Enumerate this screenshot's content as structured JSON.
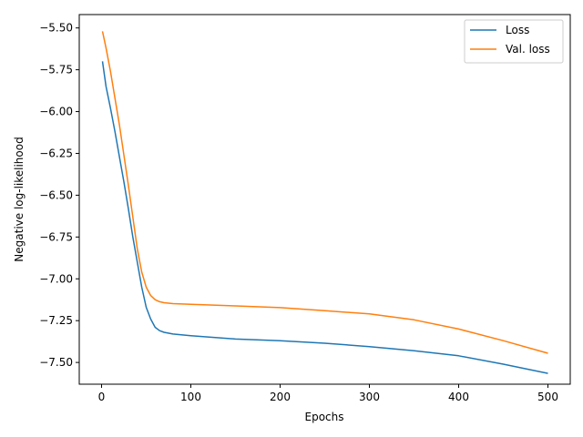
{
  "chart_data": {
    "type": "line",
    "xlabel": "Epochs",
    "ylabel": "Negative log-likelihood",
    "xlim": [
      -25,
      525
    ],
    "ylim": [
      -7.63,
      -5.42
    ],
    "xticks": [
      0,
      100,
      200,
      300,
      400,
      500
    ],
    "xtick_labels": [
      "0",
      "100",
      "200",
      "300",
      "400",
      "500"
    ],
    "yticks": [
      -5.5,
      -5.75,
      -6.0,
      -6.25,
      -6.5,
      -6.75,
      -7.0,
      -7.25,
      -7.5
    ],
    "ytick_labels": [
      "−5.50",
      "−5.75",
      "−6.00",
      "−6.25",
      "−6.50",
      "−6.75",
      "−7.00",
      "−7.25",
      "−7.50"
    ],
    "grid": false,
    "legend_position": "top-right",
    "series": [
      {
        "name": "Loss",
        "color": "#1f77b4",
        "x": [
          1,
          5,
          10,
          15,
          20,
          25,
          30,
          35,
          40,
          45,
          50,
          55,
          60,
          65,
          70,
          80,
          100,
          150,
          200,
          250,
          300,
          350,
          400,
          450,
          500
        ],
        "y": [
          -5.7,
          -5.85,
          -5.98,
          -6.12,
          -6.27,
          -6.42,
          -6.58,
          -6.75,
          -6.9,
          -7.05,
          -7.17,
          -7.24,
          -7.29,
          -7.31,
          -7.32,
          -7.33,
          -7.34,
          -7.36,
          -7.37,
          -7.385,
          -7.405,
          -7.43,
          -7.46,
          -7.51,
          -7.565
        ]
      },
      {
        "name": "Val. loss",
        "color": "#ff7f0e",
        "x": [
          1,
          5,
          10,
          15,
          20,
          25,
          30,
          35,
          40,
          45,
          50,
          55,
          60,
          65,
          70,
          80,
          100,
          150,
          200,
          250,
          300,
          350,
          400,
          450,
          500
        ],
        "y": [
          -5.52,
          -5.62,
          -5.76,
          -5.92,
          -6.08,
          -6.26,
          -6.44,
          -6.63,
          -6.82,
          -6.96,
          -7.05,
          -7.1,
          -7.125,
          -7.137,
          -7.143,
          -7.148,
          -7.152,
          -7.162,
          -7.172,
          -7.19,
          -7.21,
          -7.245,
          -7.3,
          -7.37,
          -7.445
        ]
      }
    ]
  }
}
